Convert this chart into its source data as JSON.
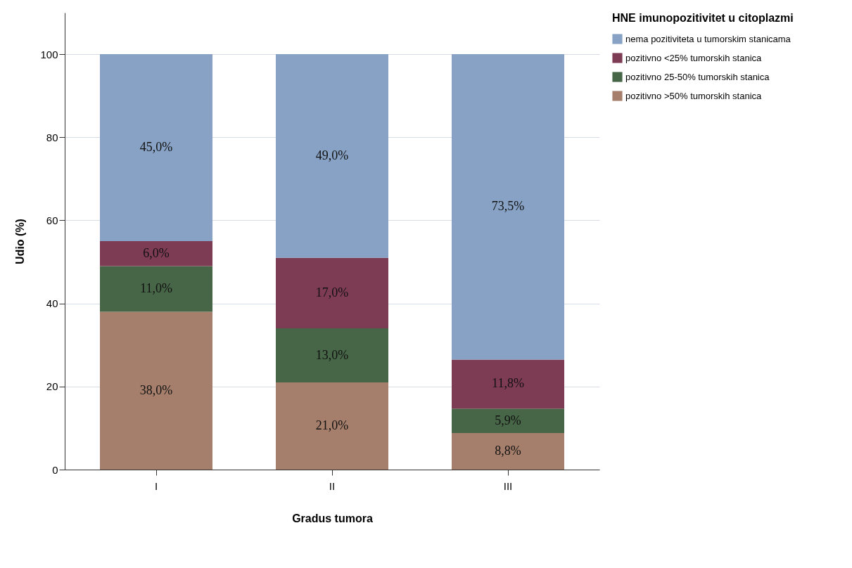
{
  "chart_data": {
    "type": "bar",
    "stacked": true,
    "xlabel": "Gradus tumora",
    "ylabel": "Udio (%)",
    "legend_title": "HNE imunopozitivitet u citoplazmi",
    "categories": [
      "I",
      "II",
      "III"
    ],
    "ylim": [
      0,
      110
    ],
    "yticks": [
      0,
      20,
      40,
      60,
      80,
      100
    ],
    "grid": "y",
    "legend": "top right",
    "series": [
      {
        "name": "pozitivno >50% tumorskih stanica",
        "color": "#a67f6c",
        "values": [
          38,
          21,
          8.8
        ],
        "value_labels": [
          "38,0%",
          "21,0%",
          "8,8%"
        ]
      },
      {
        "name": "pozitivno 25-50% tumorskih stanica",
        "color": "#476547",
        "values": [
          11,
          13,
          5.9
        ],
        "value_labels": [
          "11,0%",
          "13,0%",
          "5,9%"
        ]
      },
      {
        "name": "pozitivno <25% tumorskih stanica",
        "color": "#7e3b54",
        "values": [
          6,
          17,
          11.8
        ],
        "value_labels": [
          "6,0%",
          "17,0%",
          "11,8%"
        ]
      },
      {
        "name": "nema pozitiviteta u tumorskim stanicama",
        "color": "#87a2c4",
        "values": [
          45,
          49,
          73.5
        ],
        "value_labels": [
          "45,0%",
          "49,0%",
          "73,5%"
        ]
      }
    ]
  }
}
